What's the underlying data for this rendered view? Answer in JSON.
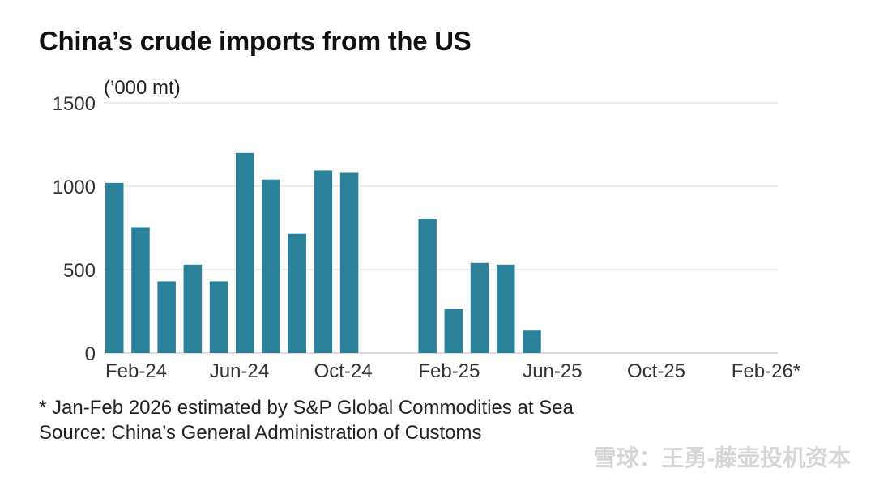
{
  "chart_data": {
    "type": "bar",
    "title": "China’s crude imports from the US",
    "ylabel": "(’000 mt)",
    "ylim": [
      0,
      1500
    ],
    "yticks": [
      0,
      500,
      1000,
      1500
    ],
    "x_tick_labels": [
      "Feb-24",
      "Jun-24",
      "Oct-24",
      "Feb-25",
      "Jun-25",
      "Oct-25",
      "Feb-26*"
    ],
    "categories": [
      "Feb-24",
      "Mar-24",
      "Apr-24",
      "May-24",
      "Jun-24",
      "Jul-24",
      "Aug-24",
      "Sep-24",
      "Oct-24",
      "Nov-24",
      "Dec-24",
      "Jan-25",
      "Feb-25",
      "Mar-25",
      "Apr-25",
      "May-25",
      "Jun-25",
      "Jul-25",
      "Aug-25",
      "Sep-25",
      "Oct-25",
      "Nov-25",
      "Dec-25",
      "Jan-26",
      "Feb-26"
    ],
    "values": [
      1020,
      755,
      430,
      530,
      430,
      1200,
      1040,
      715,
      1095,
      1080,
      0,
      0,
      805,
      265,
      540,
      530,
      135,
      0,
      0,
      0,
      0,
      0,
      0,
      0,
      0
    ],
    "bar_color": "#2a8199",
    "grid": true
  },
  "footnote": {
    "estimate": "* Jan-Feb 2026 estimated by S&P Global Commodities at Sea",
    "source": "Source: China’s General Administration of Customs"
  },
  "watermark": "雪球：王勇-藤壶投机资本"
}
